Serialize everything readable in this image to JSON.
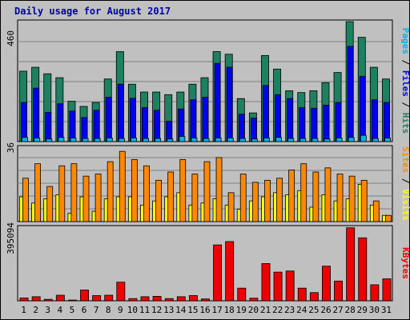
{
  "title": "Daily usage for August 2017",
  "colors": {
    "hits": "#1d8060",
    "files": "#0000ee",
    "pages": "#00b0ee",
    "visits": "#ffff00",
    "sites": "#ff8800",
    "kbytes": "#ee0000",
    "weekday_label": "#000000",
    "weekend_label": "#006600",
    "divider_slash": "#000000"
  },
  "side_labels": {
    "top": [
      {
        "text": "Pages",
        "color": "#00b0ee"
      },
      {
        "text": " / ",
        "color": "#000000"
      },
      {
        "text": "Files",
        "color": "#0000ee"
      },
      {
        "text": " / ",
        "color": "#000000"
      },
      {
        "text": "Hits",
        "color": "#1d8060"
      }
    ],
    "middle": [
      {
        "text": "Sites",
        "color": "#ff8800"
      },
      {
        "text": " / ",
        "color": "#000000"
      },
      {
        "text": "Visits",
        "color": "#ffff00"
      }
    ],
    "bottom": [
      {
        "text": "KBytes",
        "color": "#ee0000"
      }
    ]
  },
  "chart_data": [
    {
      "type": "bar",
      "panel": "top",
      "scale_label": "460",
      "ylim": [
        0,
        460
      ],
      "categories": [
        "1",
        "2",
        "3",
        "4",
        "5",
        "6",
        "7",
        "8",
        "9",
        "10",
        "11",
        "12",
        "13",
        "14",
        "15",
        "16",
        "17",
        "18",
        "19",
        "20",
        "21",
        "22",
        "23",
        "24",
        "25",
        "26",
        "27",
        "28",
        "29",
        "30",
        "31"
      ],
      "weekend": [
        "5",
        "6",
        "12",
        "13",
        "19",
        "20",
        "26",
        "27"
      ],
      "series": [
        {
          "name": "Hits",
          "values": [
            270,
            285,
            260,
            245,
            155,
            135,
            150,
            240,
            345,
            220,
            190,
            190,
            180,
            190,
            220,
            245,
            345,
            335,
            165,
            110,
            330,
            278,
            195,
            188,
            195,
            226,
            265,
            460,
            400,
            285,
            240
          ]
        },
        {
          "name": "Files",
          "values": [
            150,
            205,
            112,
            145,
            117,
            92,
            120,
            170,
            220,
            166,
            130,
            120,
            78,
            125,
            160,
            170,
            300,
            285,
            105,
            90,
            215,
            180,
            165,
            130,
            128,
            140,
            150,
            365,
            250,
            160,
            150
          ]
        },
        {
          "name": "Pages",
          "values": [
            16,
            14,
            10,
            16,
            14,
            12,
            12,
            14,
            12,
            14,
            12,
            12,
            10,
            20,
            14,
            12,
            14,
            14,
            12,
            10,
            14,
            16,
            12,
            12,
            12,
            10,
            14,
            16,
            24,
            12,
            14
          ]
        }
      ]
    },
    {
      "type": "bar",
      "panel": "middle",
      "scale_label": "36",
      "ylim": [
        0,
        36
      ],
      "categories": [
        "1",
        "2",
        "3",
        "4",
        "5",
        "6",
        "7",
        "8",
        "9",
        "10",
        "11",
        "12",
        "13",
        "14",
        "15",
        "16",
        "17",
        "18",
        "19",
        "20",
        "21",
        "22",
        "23",
        "24",
        "25",
        "26",
        "27",
        "28",
        "29",
        "30",
        "31"
      ],
      "series": [
        {
          "name": "Visits",
          "values": [
            12,
            9,
            11,
            13,
            4,
            12,
            5,
            11,
            12,
            12,
            8,
            10,
            12,
            14,
            8,
            9,
            11,
            8,
            6,
            10,
            12,
            14,
            13,
            15,
            7,
            13,
            10,
            11,
            18,
            8,
            3
          ]
        },
        {
          "name": "Sites",
          "values": [
            21,
            28,
            17,
            27,
            28,
            22,
            23,
            29,
            34,
            30,
            27,
            20,
            24,
            30,
            23,
            29,
            31,
            14,
            23,
            19,
            20,
            21,
            25,
            28,
            24,
            26,
            23,
            22,
            20,
            10,
            3
          ]
        }
      ]
    },
    {
      "type": "bar",
      "panel": "bottom",
      "scale_label": "395094",
      "ylim": [
        0,
        395094
      ],
      "categories": [
        "1",
        "2",
        "3",
        "4",
        "5",
        "6",
        "7",
        "8",
        "9",
        "10",
        "11",
        "12",
        "13",
        "14",
        "15",
        "16",
        "17",
        "18",
        "19",
        "20",
        "21",
        "22",
        "23",
        "24",
        "25",
        "26",
        "27",
        "28",
        "29",
        "30",
        "31"
      ],
      "series": [
        {
          "name": "KBytes",
          "values": [
            15000,
            22000,
            8000,
            30000,
            4000,
            58000,
            28000,
            30000,
            100000,
            12000,
            22000,
            24000,
            12000,
            22000,
            28000,
            10000,
            300000,
            318000,
            68000,
            14000,
            200000,
            154000,
            160000,
            68000,
            44000,
            186000,
            106000,
            392000,
            338000,
            86000,
            118000
          ]
        }
      ]
    }
  ]
}
